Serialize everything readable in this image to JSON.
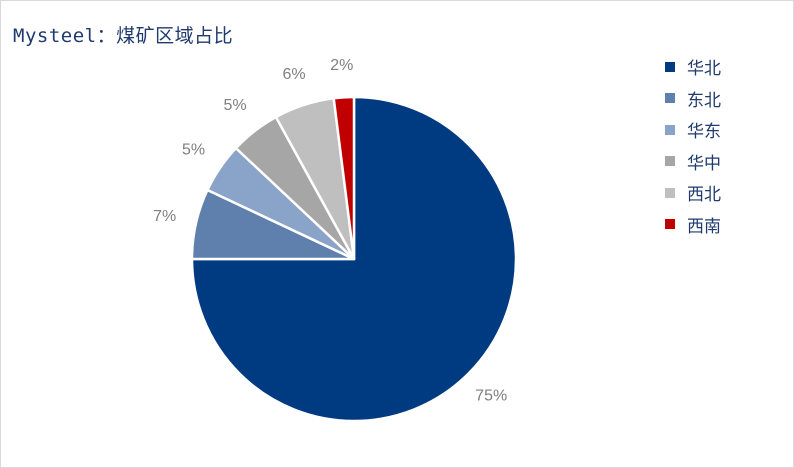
{
  "title": "Mysteel：煤矿区域占比",
  "chart_data": {
    "type": "pie",
    "title": "Mysteel：煤矿区域占比",
    "start_angle": "12 o'clock",
    "direction": "clockwise",
    "legend_position": "right",
    "slices": [
      {
        "label": "华北",
        "value": 75,
        "display": "75%",
        "color": "#003a80"
      },
      {
        "label": "东北",
        "value": 7,
        "display": "7%",
        "color": "#5f7fad"
      },
      {
        "label": "华东",
        "value": 5,
        "display": "5%",
        "color": "#8aa3c8"
      },
      {
        "label": "华中",
        "value": 5,
        "display": "5%",
        "color": "#a6a6a6"
      },
      {
        "label": "西北",
        "value": 6,
        "display": "6%",
        "color": "#bfbfbf"
      },
      {
        "label": "西南",
        "value": 2,
        "display": "2%",
        "color": "#c00000"
      }
    ]
  }
}
